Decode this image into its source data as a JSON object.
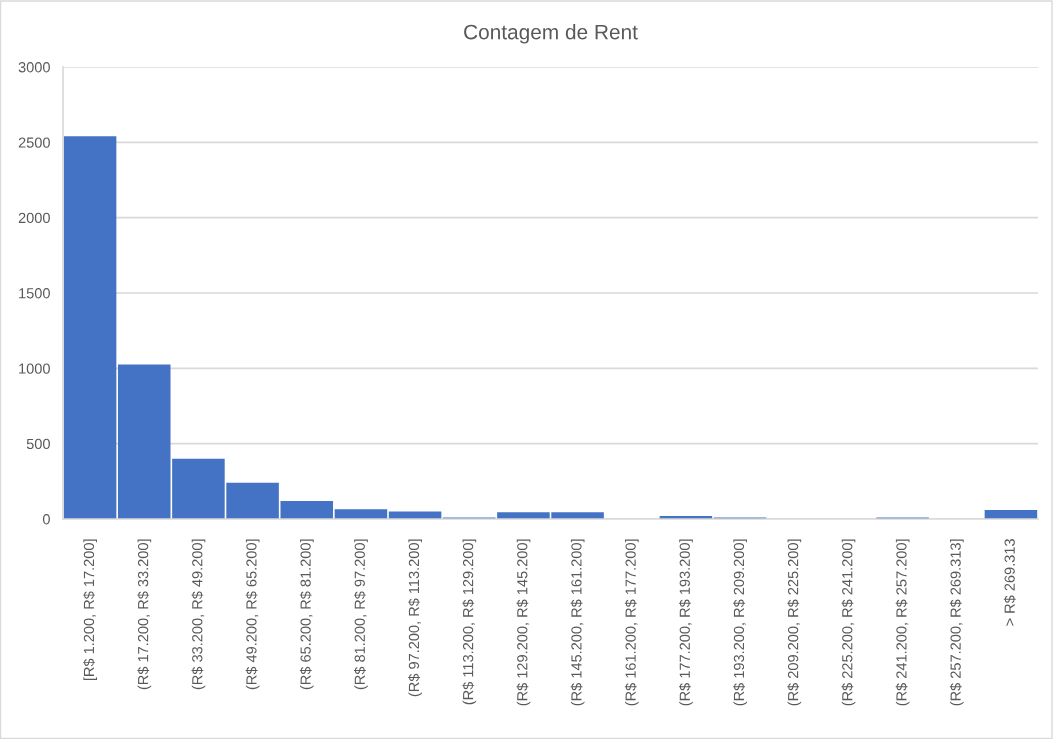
{
  "chart_data": {
    "type": "bar",
    "title": "Contagem de Rent",
    "categories": [
      "[R$ 1.200, R$ 17.200]",
      "(R$ 17.200, R$ 33.200]",
      "(R$ 33.200, R$ 49.200]",
      "(R$ 49.200, R$ 65.200]",
      "(R$ 65.200, R$ 81.200]",
      "(R$ 81.200, R$ 97.200]",
      "(R$ 97.200, R$ 113.200]",
      "(R$ 113.200, R$ 129.200]",
      "(R$ 129.200, R$ 145.200]",
      "(R$ 145.200, R$ 161.200]",
      "(R$ 161.200, R$ 177.200]",
      "(R$ 177.200, R$ 193.200]",
      "(R$ 193.200, R$ 209.200]",
      "(R$ 209.200, R$ 225.200]",
      "(R$ 225.200, R$ 241.200]",
      "(R$ 241.200, R$ 257.200]",
      "(R$ 257.200, R$ 269.313]",
      "> R$ 269.313"
    ],
    "values": [
      2540,
      1025,
      400,
      240,
      120,
      65,
      50,
      10,
      45,
      45,
      0,
      20,
      10,
      0,
      0,
      10,
      0,
      60
    ],
    "color": "#4472c4",
    "ylim": [
      0,
      3000
    ],
    "yticks": [
      0,
      500,
      1000,
      1500,
      2000,
      2500,
      3000
    ],
    "grid": "y",
    "legend": false
  }
}
